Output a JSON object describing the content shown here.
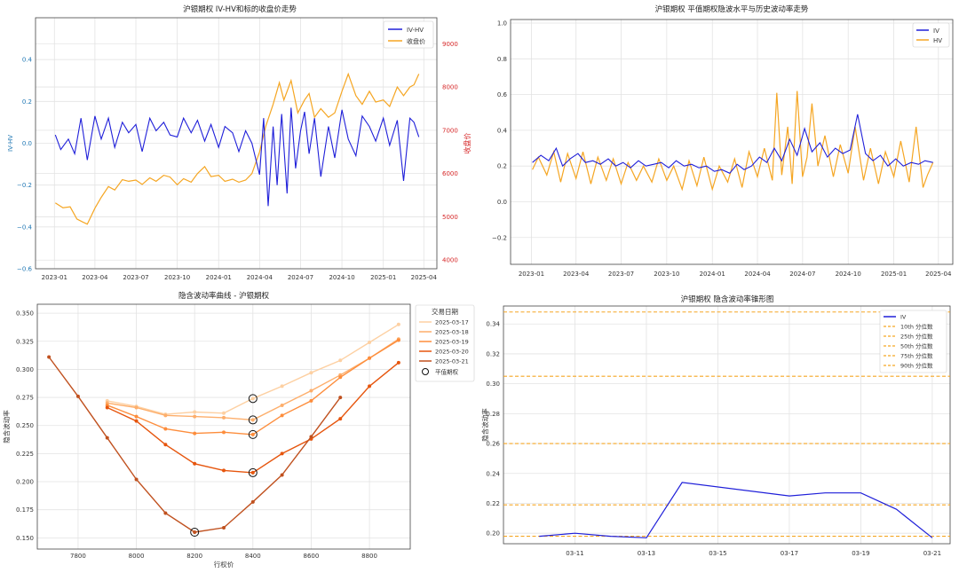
{
  "chart_data": [
    {
      "type": "line",
      "title": "沪银期权 IV-HV和标的收盘价走势",
      "ylabel": "IV-HV",
      "y2label": "收盘价",
      "ylim": [
        -0.6,
        0.6
      ],
      "y2lim": [
        3800,
        9600
      ],
      "xlim": [
        "2022-11-20",
        "2025-04-30"
      ],
      "yticks": [
        -0.6,
        -0.4,
        -0.2,
        0.0,
        0.2,
        0.4
      ],
      "ytick_labels": [
        "−0.6",
        "−0.4",
        "−0.2",
        "0.0",
        "0.2",
        "0.4"
      ],
      "y2ticks": [
        4000,
        5000,
        6000,
        7000,
        8000,
        9000
      ],
      "y2tick_labels": [
        "4000",
        "5000",
        "6000",
        "7000",
        "8000",
        "9000"
      ],
      "xticks": [
        "2023-01-01",
        "2023-04-01",
        "2023-07-01",
        "2023-10-01",
        "2024-01-01",
        "2024-04-01",
        "2024-07-01",
        "2024-10-01",
        "2025-01-01",
        "2025-04-01"
      ],
      "xtick_labels": [
        "2023-01",
        "2023-04",
        "2023-07",
        "2023-10",
        "2024-01",
        "2024-04",
        "2024-07",
        "2024-10",
        "2025-01",
        "2025-04"
      ],
      "legend_position": "top-right",
      "grid": true,
      "series": [
        {
          "name": "IV-HV",
          "axis": "left",
          "color": "#1f1fd9",
          "x": [
            "2023-01-03",
            "2023-01-15",
            "2023-02-01",
            "2023-02-15",
            "2023-03-01",
            "2023-03-15",
            "2023-04-01",
            "2023-04-15",
            "2023-05-01",
            "2023-05-15",
            "2023-06-01",
            "2023-06-15",
            "2023-07-01",
            "2023-07-15",
            "2023-08-01",
            "2023-08-15",
            "2023-09-01",
            "2023-09-15",
            "2023-10-01",
            "2023-10-15",
            "2023-11-01",
            "2023-11-15",
            "2023-12-01",
            "2023-12-15",
            "2024-01-01",
            "2024-01-15",
            "2024-02-01",
            "2024-02-15",
            "2024-03-01",
            "2024-03-15",
            "2024-04-01",
            "2024-04-10",
            "2024-04-20",
            "2024-05-01",
            "2024-05-10",
            "2024-05-20",
            "2024-06-01",
            "2024-06-10",
            "2024-06-20",
            "2024-07-01",
            "2024-07-10",
            "2024-07-20",
            "2024-08-01",
            "2024-08-15",
            "2024-09-01",
            "2024-09-15",
            "2024-10-01",
            "2024-10-15",
            "2024-11-01",
            "2024-11-15",
            "2024-12-01",
            "2024-12-15",
            "2025-01-01",
            "2025-01-15",
            "2025-02-01",
            "2025-02-15",
            "2025-03-01",
            "2025-03-10",
            "2025-03-21"
          ],
          "values": [
            0.04,
            -0.03,
            0.02,
            -0.05,
            0.12,
            -0.08,
            0.13,
            0.02,
            0.12,
            -0.02,
            0.1,
            0.05,
            0.09,
            -0.04,
            0.12,
            0.06,
            0.1,
            0.04,
            0.03,
            0.12,
            0.05,
            0.11,
            0.01,
            0.09,
            -0.02,
            0.08,
            0.05,
            -0.04,
            0.06,
            0.0,
            -0.15,
            0.12,
            -0.3,
            0.08,
            -0.2,
            0.14,
            -0.24,
            0.17,
            -0.12,
            0.06,
            0.15,
            -0.05,
            0.12,
            -0.16,
            0.08,
            -0.07,
            0.16,
            0.02,
            -0.06,
            0.13,
            0.08,
            0.01,
            0.12,
            -0.01,
            0.11,
            -0.18,
            0.12,
            0.1,
            0.03
          ]
        },
        {
          "name": "收盘价",
          "axis": "right",
          "color": "#f5a623",
          "x": [
            "2023-01-03",
            "2023-01-20",
            "2023-02-05",
            "2023-02-20",
            "2023-03-05",
            "2023-03-15",
            "2023-04-01",
            "2023-04-15",
            "2023-05-01",
            "2023-05-15",
            "2023-06-01",
            "2023-06-15",
            "2023-07-01",
            "2023-07-15",
            "2023-08-01",
            "2023-08-15",
            "2023-09-01",
            "2023-09-15",
            "2023-10-01",
            "2023-10-15",
            "2023-11-01",
            "2023-11-15",
            "2023-12-01",
            "2023-12-15",
            "2024-01-01",
            "2024-01-15",
            "2024-02-01",
            "2024-02-15",
            "2024-03-01",
            "2024-03-15",
            "2024-04-01",
            "2024-04-15",
            "2024-05-01",
            "2024-05-15",
            "2024-05-25",
            "2024-06-10",
            "2024-06-25",
            "2024-07-10",
            "2024-07-20",
            "2024-08-01",
            "2024-08-15",
            "2024-09-01",
            "2024-09-15",
            "2024-10-01",
            "2024-10-15",
            "2024-11-01",
            "2024-11-15",
            "2024-12-01",
            "2024-12-15",
            "2025-01-01",
            "2025-01-15",
            "2025-02-01",
            "2025-02-15",
            "2025-03-01",
            "2025-03-10",
            "2025-03-21"
          ],
          "values": [
            5320,
            5210,
            5230,
            4950,
            4880,
            4830,
            5200,
            5450,
            5700,
            5620,
            5860,
            5820,
            5850,
            5750,
            5900,
            5820,
            5960,
            5920,
            5740,
            5880,
            5800,
            6000,
            6160,
            5930,
            5960,
            5820,
            5870,
            5800,
            5850,
            6000,
            6500,
            7100,
            7600,
            8100,
            7700,
            8150,
            7400,
            7700,
            7850,
            7300,
            7500,
            7300,
            7400,
            7900,
            8300,
            7800,
            7600,
            7900,
            7650,
            7700,
            7550,
            8000,
            7800,
            8000,
            8050,
            8300
          ]
        }
      ]
    },
    {
      "type": "line",
      "title": "沪银期权 平值期权隐波水平与历史波动率走势",
      "ylim": [
        -0.35,
        1.02
      ],
      "yticks": [
        -0.2,
        0.0,
        0.2,
        0.4,
        0.6,
        0.8,
        1.0
      ],
      "ytick_labels": [
        "−0.2",
        "0.0",
        "0.2",
        "0.4",
        "0.6",
        "0.8",
        "1.0"
      ],
      "xlim": [
        "2022-11-20",
        "2025-04-30"
      ],
      "xticks": [
        "2023-01-01",
        "2023-04-01",
        "2023-07-01",
        "2023-10-01",
        "2024-01-01",
        "2024-04-01",
        "2024-07-01",
        "2024-10-01",
        "2025-01-01",
        "2025-04-01"
      ],
      "xtick_labels": [
        "2023-01",
        "2023-04",
        "2023-07",
        "2023-10",
        "2024-01",
        "2024-04",
        "2024-07",
        "2024-10",
        "2025-01",
        "2025-04"
      ],
      "legend_position": "top-right",
      "grid": true,
      "series": [
        {
          "name": "IV",
          "color": "#1f1fd9",
          "x": [
            "2023-01-03",
            "2023-01-20",
            "2023-02-05",
            "2023-02-20",
            "2023-03-05",
            "2023-03-20",
            "2023-04-05",
            "2023-04-20",
            "2023-05-05",
            "2023-05-20",
            "2023-06-05",
            "2023-06-20",
            "2023-07-05",
            "2023-07-20",
            "2023-08-05",
            "2023-08-20",
            "2023-09-05",
            "2023-09-20",
            "2023-10-05",
            "2023-10-20",
            "2023-11-05",
            "2023-11-20",
            "2023-12-05",
            "2023-12-20",
            "2024-01-05",
            "2024-01-20",
            "2024-02-05",
            "2024-02-20",
            "2024-03-05",
            "2024-03-20",
            "2024-04-05",
            "2024-04-20",
            "2024-05-05",
            "2024-05-20",
            "2024-06-05",
            "2024-06-20",
            "2024-07-05",
            "2024-07-20",
            "2024-08-05",
            "2024-08-20",
            "2024-09-05",
            "2024-09-20",
            "2024-10-05",
            "2024-10-20",
            "2024-11-05",
            "2024-11-20",
            "2024-12-05",
            "2024-12-20",
            "2025-01-05",
            "2025-01-20",
            "2025-02-05",
            "2025-02-20",
            "2025-03-05",
            "2025-03-21"
          ],
          "values": [
            0.22,
            0.26,
            0.23,
            0.3,
            0.2,
            0.24,
            0.27,
            0.22,
            0.23,
            0.21,
            0.24,
            0.2,
            0.22,
            0.19,
            0.23,
            0.2,
            0.21,
            0.22,
            0.19,
            0.23,
            0.2,
            0.21,
            0.19,
            0.2,
            0.17,
            0.18,
            0.16,
            0.21,
            0.18,
            0.2,
            0.25,
            0.22,
            0.3,
            0.23,
            0.35,
            0.26,
            0.41,
            0.28,
            0.33,
            0.25,
            0.3,
            0.27,
            0.29,
            0.49,
            0.27,
            0.23,
            0.26,
            0.2,
            0.24,
            0.2,
            0.22,
            0.21,
            0.23,
            0.22
          ]
        },
        {
          "name": "HV",
          "color": "#f5a623",
          "x": [
            "2023-01-03",
            "2023-01-15",
            "2023-02-01",
            "2023-02-15",
            "2023-03-01",
            "2023-03-15",
            "2023-04-01",
            "2023-04-15",
            "2023-05-01",
            "2023-05-15",
            "2023-06-01",
            "2023-06-15",
            "2023-07-01",
            "2023-07-15",
            "2023-08-01",
            "2023-08-15",
            "2023-09-01",
            "2023-09-15",
            "2023-10-01",
            "2023-10-15",
            "2023-11-01",
            "2023-11-15",
            "2023-12-01",
            "2023-12-15",
            "2024-01-01",
            "2024-01-15",
            "2024-02-01",
            "2024-02-15",
            "2024-03-01",
            "2024-03-15",
            "2024-04-01",
            "2024-04-15",
            "2024-05-01",
            "2024-05-10",
            "2024-05-20",
            "2024-06-01",
            "2024-06-10",
            "2024-06-20",
            "2024-07-01",
            "2024-07-10",
            "2024-07-20",
            "2024-08-01",
            "2024-08-15",
            "2024-09-01",
            "2024-09-15",
            "2024-10-01",
            "2024-10-15",
            "2024-11-01",
            "2024-11-15",
            "2024-12-01",
            "2024-12-15",
            "2025-01-01",
            "2025-01-15",
            "2025-02-01",
            "2025-02-15",
            "2025-03-01",
            "2025-03-10",
            "2025-03-21"
          ],
          "values": [
            0.18,
            0.25,
            0.15,
            0.28,
            0.11,
            0.27,
            0.13,
            0.28,
            0.1,
            0.25,
            0.12,
            0.24,
            0.1,
            0.22,
            0.12,
            0.2,
            0.11,
            0.24,
            0.12,
            0.2,
            0.07,
            0.23,
            0.09,
            0.25,
            0.07,
            0.2,
            0.11,
            0.24,
            0.08,
            0.28,
            0.14,
            0.3,
            0.12,
            0.61,
            0.15,
            0.42,
            0.1,
            0.62,
            0.14,
            0.25,
            0.55,
            0.2,
            0.37,
            0.14,
            0.32,
            0.16,
            0.42,
            0.12,
            0.3,
            0.1,
            0.28,
            0.14,
            0.34,
            0.11,
            0.42,
            0.08,
            0.15,
            0.22
          ]
        }
      ]
    },
    {
      "type": "line",
      "title": "隐含波动率曲线 - 沪银期权",
      "xlabel": "行权价",
      "ylabel": "隐含波动率",
      "xlim": [
        7660,
        8940
      ],
      "ylim": [
        0.14,
        0.358
      ],
      "xticks": [
        7800,
        8000,
        8200,
        8400,
        8600,
        8800
      ],
      "xtick_labels": [
        "7800",
        "8000",
        "8200",
        "8400",
        "8600",
        "8800"
      ],
      "yticks": [
        0.15,
        0.175,
        0.2,
        0.225,
        0.25,
        0.275,
        0.3,
        0.325,
        0.35
      ],
      "ytick_labels": [
        "0.150",
        "0.175",
        "0.200",
        "0.225",
        "0.250",
        "0.275",
        "0.300",
        "0.325",
        "0.350"
      ],
      "legend_title": "交易日期",
      "legend_position": "outside-right",
      "atm_label": "平值期权",
      "grid": true,
      "series": [
        {
          "name": "2025-03-17",
          "color": "#fdd0a2",
          "x": [
            7900,
            8000,
            8100,
            8200,
            8300,
            8400,
            8500,
            8600,
            8700,
            8800,
            8900
          ],
          "values": [
            0.272,
            0.267,
            0.26,
            0.262,
            0.261,
            0.274,
            0.285,
            0.297,
            0.308,
            0.324,
            0.34
          ],
          "atm": [
            8400,
            0.274
          ]
        },
        {
          "name": "2025-03-18",
          "color": "#fdae6b",
          "x": [
            7900,
            8000,
            8100,
            8200,
            8300,
            8400,
            8500,
            8600,
            8700,
            8800,
            8900
          ],
          "values": [
            0.27,
            0.266,
            0.259,
            0.258,
            0.257,
            0.255,
            0.268,
            0.281,
            0.295,
            0.31,
            0.327
          ],
          "atm": [
            8400,
            0.255
          ]
        },
        {
          "name": "2025-03-19",
          "color": "#fd8d3c",
          "x": [
            7900,
            8000,
            8100,
            8200,
            8300,
            8400,
            8500,
            8600,
            8700,
            8800,
            8900
          ],
          "values": [
            0.268,
            0.258,
            0.247,
            0.243,
            0.244,
            0.242,
            0.259,
            0.272,
            0.293,
            0.31,
            0.326
          ],
          "atm": [
            8400,
            0.242
          ]
        },
        {
          "name": "2025-03-20",
          "color": "#e6550d",
          "x": [
            7900,
            8000,
            8100,
            8200,
            8300,
            8400,
            8500,
            8600,
            8700,
            8800,
            8900
          ],
          "values": [
            0.266,
            0.254,
            0.233,
            0.216,
            0.21,
            0.208,
            0.225,
            0.238,
            0.256,
            0.285,
            0.306
          ],
          "atm": [
            8400,
            0.208
          ]
        },
        {
          "name": "2025-03-21",
          "color": "#c0511f",
          "x": [
            7700,
            7800,
            7900,
            8000,
            8100,
            8200,
            8300,
            8400,
            8500,
            8600,
            8700
          ],
          "values": [
            0.311,
            0.276,
            0.239,
            0.202,
            0.172,
            0.155,
            0.159,
            0.182,
            0.206,
            0.24,
            0.275
          ],
          "atm": [
            8200,
            0.155
          ]
        }
      ]
    },
    {
      "type": "line",
      "title": "沪银期权 隐含波动率锥形图",
      "ylabel": "隐含波动率",
      "xlim": [
        "2025-03-09",
        "2025-03-21.5"
      ],
      "ylim": [
        0.193,
        0.352
      ],
      "yticks": [
        0.2,
        0.22,
        0.24,
        0.26,
        0.28,
        0.3,
        0.32,
        0.34
      ],
      "ytick_labels": [
        "0.20",
        "0.22",
        "0.24",
        "0.26",
        "0.28",
        "0.30",
        "0.32",
        "0.34"
      ],
      "xticks": [
        "2025-03-11",
        "2025-03-13",
        "2025-03-15",
        "2025-03-17",
        "2025-03-19",
        "2025-03-21"
      ],
      "xtick_labels": [
        "03-11",
        "03-13",
        "03-15",
        "03-17",
        "03-19",
        "03-21"
      ],
      "legend_position": "top-right",
      "grid": true,
      "series": [
        {
          "name": "IV",
          "color": "#1f1fd9",
          "x": [
            "2025-03-10",
            "2025-03-11",
            "2025-03-12",
            "2025-03-13",
            "2025-03-14",
            "2025-03-17",
            "2025-03-18",
            "2025-03-19",
            "2025-03-20",
            "2025-03-21"
          ],
          "values": [
            0.198,
            0.2,
            0.198,
            0.197,
            0.234,
            0.225,
            0.227,
            0.227,
            0.216,
            0.197
          ]
        }
      ],
      "percentiles": [
        {
          "name": "10th 分位数",
          "value": 0.198
        },
        {
          "name": "25th 分位数",
          "value": 0.219
        },
        {
          "name": "50th 分位数",
          "value": 0.26
        },
        {
          "name": "75th 分位数",
          "value": 0.305
        },
        {
          "name": "90th 分位数",
          "value": 0.348
        }
      ],
      "percentile_color": "#f5a623"
    }
  ]
}
